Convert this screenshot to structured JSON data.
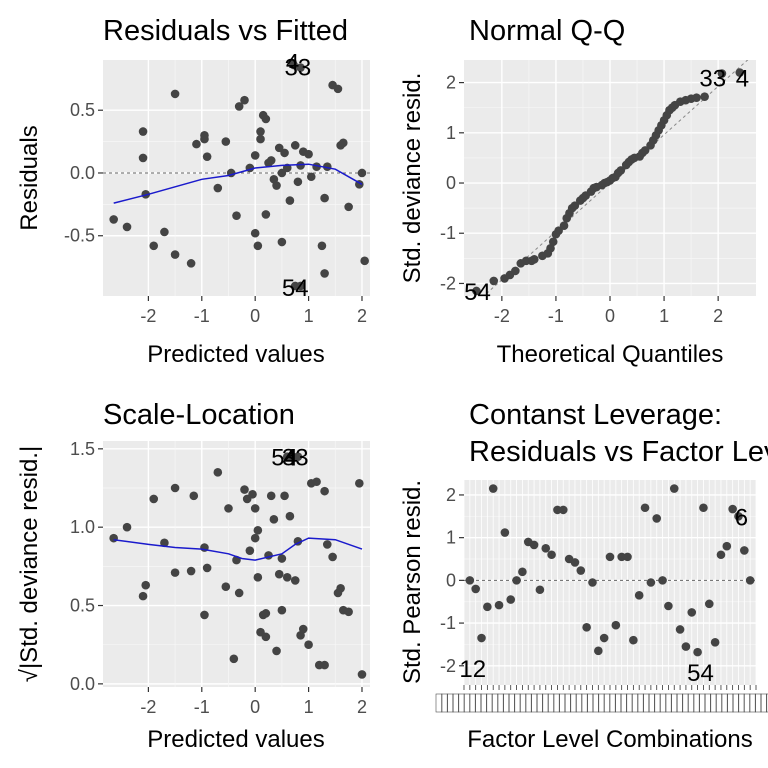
{
  "panels": [
    {
      "title": "Residuals vs Fitted",
      "xlabel": "Predicted values",
      "ylabel": "Residuals",
      "xticks": [
        -2,
        -1,
        0,
        1,
        2
      ],
      "yticks": [
        "-0.5",
        "0.0",
        "0.5"
      ]
    },
    {
      "title": "Normal Q-Q",
      "xlabel": "Theoretical Quantiles",
      "ylabel": "Std. deviance resid.",
      "xticks": [
        -2,
        -1,
        0,
        1,
        2
      ],
      "yticks": [
        "-2",
        "-1",
        "0",
        "1",
        "2"
      ]
    },
    {
      "title": "Scale-Location",
      "xlabel": "Predicted values",
      "ylabel": "√|Std. deviance resid.|",
      "xticks": [
        -2,
        -1,
        0,
        1,
        2
      ],
      "yticks": [
        "0.0",
        "0.5",
        "1.0",
        "1.5"
      ]
    },
    {
      "title_lines": [
        "Contanst Leverage:",
        "Residuals vs Factor Levels"
      ],
      "xlabel": "Factor Level Combinations",
      "ylabel": "Std. Pearson resid.",
      "yticks": [
        "-2",
        "-1",
        "0",
        "1",
        "2"
      ]
    }
  ],
  "chart_data": [
    {
      "type": "scatter",
      "title": "Residuals vs Fitted",
      "xlabel": "Predicted values",
      "ylabel": "Residuals",
      "xlim": [
        -2.85,
        2.15
      ],
      "ylim": [
        -0.98,
        0.9
      ],
      "ref_line_y": 0,
      "points": [
        [
          -2.65,
          -0.37
        ],
        [
          -2.4,
          -0.43
        ],
        [
          -2.1,
          0.33
        ],
        [
          -2.1,
          0.12
        ],
        [
          -2.05,
          -0.17
        ],
        [
          -1.9,
          -0.58
        ],
        [
          -1.7,
          -0.47
        ],
        [
          -1.5,
          0.63
        ],
        [
          -1.5,
          -0.65
        ],
        [
          -1.2,
          -0.72
        ],
        [
          -1.1,
          0.23
        ],
        [
          -0.95,
          0.3
        ],
        [
          -0.95,
          0.27
        ],
        [
          -0.9,
          0.13
        ],
        [
          -0.7,
          -0.12
        ],
        [
          -0.55,
          0.25
        ],
        [
          -0.45,
          0.0
        ],
        [
          -0.35,
          -0.34
        ],
        [
          -0.3,
          0.53
        ],
        [
          -0.2,
          0.58
        ],
        [
          -0.1,
          0.04
        ],
        [
          0.0,
          0.14
        ],
        [
          0.0,
          -0.48
        ],
        [
          0.05,
          -0.58
        ],
        [
          0.1,
          0.33
        ],
        [
          0.1,
          0.27
        ],
        [
          0.15,
          0.46
        ],
        [
          0.2,
          0.43
        ],
        [
          0.2,
          -0.33
        ],
        [
          0.25,
          0.08
        ],
        [
          0.3,
          0.1
        ],
        [
          0.35,
          -0.05
        ],
        [
          0.4,
          -0.1
        ],
        [
          0.45,
          0.2
        ],
        [
          0.5,
          0.0
        ],
        [
          0.5,
          -0.55
        ],
        [
          0.55,
          0.16
        ],
        [
          0.6,
          0.04
        ],
        [
          0.65,
          -0.22
        ],
        [
          0.75,
          0.22
        ],
        [
          0.8,
          -0.07
        ],
        [
          0.85,
          0.06
        ],
        [
          0.9,
          0.17
        ],
        [
          1.0,
          0.15
        ],
        [
          1.05,
          -0.03
        ],
        [
          1.15,
          0.05
        ],
        [
          1.25,
          -0.58
        ],
        [
          1.3,
          -0.2
        ],
        [
          1.3,
          -0.8
        ],
        [
          1.35,
          0.05
        ],
        [
          1.45,
          0.7
        ],
        [
          1.55,
          0.67
        ],
        [
          1.6,
          0.22
        ],
        [
          1.65,
          0.24
        ],
        [
          1.75,
          -0.27
        ],
        [
          1.95,
          -0.09
        ],
        [
          2.0,
          0.0
        ],
        [
          2.05,
          -0.7
        ],
        [
          0.7,
          0.88
        ],
        [
          0.72,
          0.86
        ],
        [
          0.85,
          0.84
        ],
        [
          0.75,
          -0.9
        ],
        [
          0.85,
          -0.9
        ]
      ],
      "smooth": [
        [
          -2.65,
          -0.24
        ],
        [
          -2,
          -0.17
        ],
        [
          -1.5,
          -0.11
        ],
        [
          -1,
          -0.05
        ],
        [
          -0.5,
          -0.02
        ],
        [
          0,
          0.04
        ],
        [
          0.5,
          0.06
        ],
        [
          1,
          0.07
        ],
        [
          1.5,
          0.03
        ],
        [
          2,
          -0.09
        ]
      ],
      "point_labels": [
        {
          "text": "4",
          "x": 0.7,
          "y": 0.89
        },
        {
          "text": "33",
          "x": 0.8,
          "y": 0.85
        },
        {
          "text": "54",
          "x": 0.75,
          "y": -0.91
        }
      ]
    },
    {
      "type": "scatter",
      "title": "Normal Q-Q",
      "xlabel": "Theoretical Quantiles",
      "ylabel": "Std. deviance resid.",
      "xlim": [
        -2.7,
        2.7
      ],
      "ylim": [
        -2.25,
        2.45
      ],
      "ref_line": [
        [
          -2.7,
          -2.6
        ],
        [
          2.7,
          2.6
        ]
      ],
      "points": [
        [
          -2.47,
          -2.15
        ],
        [
          -2.15,
          -1.95
        ],
        [
          -1.95,
          -1.9
        ],
        [
          -1.85,
          -1.83
        ],
        [
          -1.75,
          -1.75
        ],
        [
          -1.65,
          -1.6
        ],
        [
          -1.55,
          -1.55
        ],
        [
          -1.45,
          -1.55
        ],
        [
          -1.4,
          -1.52
        ],
        [
          -1.25,
          -1.45
        ],
        [
          -1.15,
          -1.4
        ],
        [
          -1.1,
          -1.3
        ],
        [
          -1.05,
          -1.17
        ],
        [
          -1.0,
          -1.02
        ],
        [
          -0.95,
          -0.95
        ],
        [
          -0.85,
          -0.85
        ],
        [
          -0.8,
          -0.7
        ],
        [
          -0.75,
          -0.6
        ],
        [
          -0.7,
          -0.5
        ],
        [
          -0.65,
          -0.45
        ],
        [
          -0.55,
          -0.35
        ],
        [
          -0.5,
          -0.3
        ],
        [
          -0.45,
          -0.25
        ],
        [
          -0.35,
          -0.17
        ],
        [
          -0.3,
          -0.1
        ],
        [
          -0.25,
          -0.08
        ],
        [
          -0.15,
          -0.04
        ],
        [
          -0.1,
          0.0
        ],
        [
          -0.05,
          0.02
        ],
        [
          0.0,
          0.05
        ],
        [
          0.05,
          0.1
        ],
        [
          0.1,
          0.12
        ],
        [
          0.15,
          0.2
        ],
        [
          0.2,
          0.25
        ],
        [
          0.3,
          0.36
        ],
        [
          0.35,
          0.42
        ],
        [
          0.4,
          0.47
        ],
        [
          0.45,
          0.5
        ],
        [
          0.55,
          0.53
        ],
        [
          0.6,
          0.6
        ],
        [
          0.65,
          0.65
        ],
        [
          0.75,
          0.75
        ],
        [
          0.8,
          0.85
        ],
        [
          0.85,
          0.95
        ],
        [
          0.9,
          1.05
        ],
        [
          0.95,
          1.15
        ],
        [
          1.0,
          1.25
        ],
        [
          1.05,
          1.35
        ],
        [
          1.1,
          1.45
        ],
        [
          1.15,
          1.5
        ],
        [
          1.2,
          1.55
        ],
        [
          1.3,
          1.62
        ],
        [
          1.4,
          1.65
        ],
        [
          1.5,
          1.68
        ],
        [
          1.6,
          1.7
        ],
        [
          1.75,
          1.72
        ],
        [
          2.07,
          2.18
        ],
        [
          2.4,
          2.2
        ]
      ],
      "point_labels": [
        {
          "text": "33",
          "x": 1.9,
          "y": 2.1
        },
        {
          "text": "4",
          "x": 2.45,
          "y": 2.1
        },
        {
          "text": "54",
          "x": -2.45,
          "y": -2.15
        }
      ]
    },
    {
      "type": "scatter",
      "title": "Scale-Location",
      "xlabel": "Predicted values",
      "ylabel": "√|Std. deviance resid.|",
      "xlim": [
        -2.85,
        2.15
      ],
      "ylim": [
        -0.02,
        1.55
      ],
      "points": [
        [
          -2.65,
          0.93
        ],
        [
          -2.4,
          1.0
        ],
        [
          -2.1,
          0.56
        ],
        [
          -2.05,
          0.63
        ],
        [
          -1.9,
          1.18
        ],
        [
          -1.7,
          0.9
        ],
        [
          -1.5,
          1.25
        ],
        [
          -1.5,
          0.71
        ],
        [
          -1.2,
          0.72
        ],
        [
          -1.15,
          1.2
        ],
        [
          -0.95,
          0.87
        ],
        [
          -0.95,
          0.44
        ],
        [
          -0.9,
          0.74
        ],
        [
          -0.7,
          1.35
        ],
        [
          -0.55,
          0.62
        ],
        [
          -0.5,
          1.12
        ],
        [
          -0.4,
          0.16
        ],
        [
          -0.35,
          0.79
        ],
        [
          -0.3,
          0.58
        ],
        [
          -0.2,
          1.24
        ],
        [
          -0.15,
          1.18
        ],
        [
          -0.1,
          0.85
        ],
        [
          -0.05,
          1.21
        ],
        [
          0.0,
          1.12
        ],
        [
          0.0,
          0.93
        ],
        [
          0.05,
          0.98
        ],
        [
          0.05,
          0.68
        ],
        [
          0.1,
          0.33
        ],
        [
          0.15,
          0.44
        ],
        [
          0.2,
          0.45
        ],
        [
          0.2,
          0.3
        ],
        [
          0.25,
          0.82
        ],
        [
          0.3,
          1.2
        ],
        [
          0.35,
          1.05
        ],
        [
          0.4,
          0.21
        ],
        [
          0.45,
          0.7
        ],
        [
          0.5,
          0.8
        ],
        [
          0.5,
          0.47
        ],
        [
          0.55,
          1.2
        ],
        [
          0.6,
          0.68
        ],
        [
          0.65,
          1.07
        ],
        [
          0.75,
          0.66
        ],
        [
          0.8,
          0.91
        ],
        [
          0.85,
          0.31
        ],
        [
          0.9,
          0.35
        ],
        [
          1.0,
          0.25
        ],
        [
          1.05,
          1.28
        ],
        [
          1.15,
          1.29
        ],
        [
          1.2,
          0.12
        ],
        [
          1.3,
          0.12
        ],
        [
          1.3,
          1.23
        ],
        [
          1.35,
          0.89
        ],
        [
          1.45,
          0.81
        ],
        [
          1.55,
          0.58
        ],
        [
          1.6,
          0.61
        ],
        [
          1.65,
          0.47
        ],
        [
          1.75,
          0.46
        ],
        [
          1.95,
          1.28
        ],
        [
          2.0,
          0.06
        ],
        [
          0.6,
          1.45
        ],
        [
          0.7,
          1.45
        ],
        [
          0.8,
          1.45
        ]
      ],
      "smooth": [
        [
          -2.65,
          0.92
        ],
        [
          -2,
          0.89
        ],
        [
          -1.5,
          0.87
        ],
        [
          -1,
          0.86
        ],
        [
          -0.5,
          0.83
        ],
        [
          -0.25,
          0.8
        ],
        [
          0,
          0.79
        ],
        [
          0.5,
          0.83
        ],
        [
          0.75,
          0.89
        ],
        [
          1,
          0.93
        ],
        [
          1.5,
          0.92
        ],
        [
          2,
          0.86
        ]
      ],
      "point_labels": [
        {
          "text": "54",
          "x": 0.55,
          "y": 1.45
        },
        {
          "text": "33",
          "x": 0.75,
          "y": 1.45
        },
        {
          "text": "4",
          "x": 0.65,
          "y": 1.45
        }
      ]
    },
    {
      "type": "scatter",
      "title": "Contanst Leverage: Residuals vs Factor Levels",
      "xlabel": "Factor Level Combinations",
      "ylabel": "Std. Pearson resid.",
      "ylim": [
        -2.45,
        2.35
      ],
      "ref_line_y": 0,
      "points": [
        [
          2,
          0.0
        ],
        [
          4,
          -0.2
        ],
        [
          6,
          -1.35
        ],
        [
          8,
          -0.62
        ],
        [
          10,
          2.15
        ],
        [
          12,
          -0.58
        ],
        [
          14,
          1.12
        ],
        [
          16,
          -0.45
        ],
        [
          18,
          0.0
        ],
        [
          20,
          0.2
        ],
        [
          22,
          0.9
        ],
        [
          24,
          0.83
        ],
        [
          26,
          -0.22
        ],
        [
          28,
          0.75
        ],
        [
          30,
          0.6
        ],
        [
          32,
          1.65
        ],
        [
          34,
          1.65
        ],
        [
          36,
          0.5
        ],
        [
          38,
          0.42
        ],
        [
          40,
          0.23
        ],
        [
          42,
          -1.1
        ],
        [
          44,
          -0.05
        ],
        [
          46,
          -1.65
        ],
        [
          48,
          -1.35
        ],
        [
          50,
          0.55
        ],
        [
          52,
          -1.05
        ],
        [
          54,
          0.55
        ],
        [
          56,
          0.55
        ],
        [
          58,
          -1.4
        ],
        [
          60,
          -0.35
        ],
        [
          62,
          1.7
        ],
        [
          64,
          -0.05
        ],
        [
          66,
          1.45
        ],
        [
          68,
          0.0
        ],
        [
          70,
          -0.6
        ],
        [
          72,
          2.15
        ],
        [
          74,
          -1.15
        ],
        [
          76,
          -1.55
        ],
        [
          78,
          -0.75
        ],
        [
          80,
          -1.68
        ],
        [
          82,
          1.7
        ],
        [
          84,
          -0.55
        ],
        [
          86,
          -1.45
        ],
        [
          88,
          0.6
        ],
        [
          90,
          0.8
        ],
        [
          92,
          1.67
        ],
        [
          94,
          1.5
        ],
        [
          96,
          0.7
        ],
        [
          98,
          0.0
        ]
      ],
      "point_labels": [
        {
          "text": "12",
          "x": 3,
          "y": -2.05
        },
        {
          "text": "54",
          "x": 81,
          "y": -2.15
        },
        {
          "text": "6",
          "x": 95,
          "y": 1.5
        }
      ]
    }
  ]
}
